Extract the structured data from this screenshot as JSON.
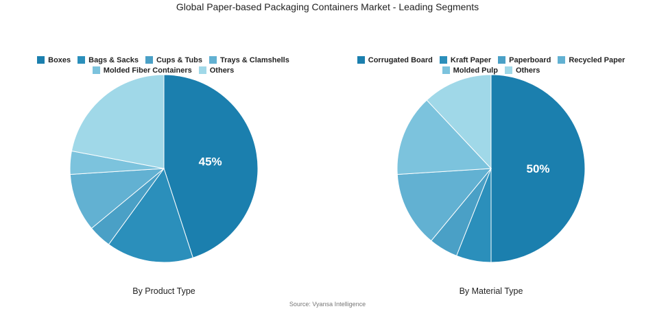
{
  "title": "Global Paper-based Packaging Containers Market - Leading Segments",
  "source": "Source: Vyansa Intelligence",
  "chart_data": [
    {
      "type": "pie",
      "caption": "By Product Type",
      "legend_position": "top",
      "legend_rows": [
        [
          0,
          1,
          2,
          3
        ],
        [
          4,
          5
        ]
      ],
      "slices": [
        {
          "label": "Boxes",
          "value": 45,
          "color": "#1b7fae",
          "show_label": "45%"
        },
        {
          "label": "Bags & Sacks",
          "value": 15,
          "color": "#2b8fbb"
        },
        {
          "label": "Cups & Tubs",
          "value": 4,
          "color": "#4aa0c6"
        },
        {
          "label": "Trays & Clamshells",
          "value": 10,
          "color": "#62b1d2"
        },
        {
          "label": "Molded Fiber Containers",
          "value": 4,
          "color": "#7cc3dd"
        },
        {
          "label": "Others",
          "value": 22,
          "color": "#a0d8e8"
        }
      ]
    },
    {
      "type": "pie",
      "caption": "By Material Type",
      "legend_position": "top",
      "legend_rows": [
        [
          0,
          1,
          2,
          3
        ],
        [
          4,
          5
        ]
      ],
      "slices": [
        {
          "label": "Corrugated Board",
          "value": 50,
          "color": "#1b7fae",
          "show_label": "50%"
        },
        {
          "label": "Kraft Paper",
          "value": 6,
          "color": "#2b8fbb"
        },
        {
          "label": "Paperboard",
          "value": 5,
          "color": "#4aa0c6"
        },
        {
          "label": "Recycled Paper",
          "value": 13,
          "color": "#62b1d2"
        },
        {
          "label": "Molded Pulp",
          "value": 14,
          "color": "#7cc3dd"
        },
        {
          "label": "Others",
          "value": 12,
          "color": "#a0d8e8"
        }
      ]
    }
  ]
}
